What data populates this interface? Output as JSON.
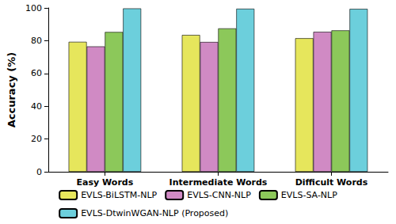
{
  "chart_data": {
    "type": "bar",
    "y_label": "Accuracy (%)",
    "categories": [
      "Easy Words",
      "Intermediate Words",
      "Difficult Words"
    ],
    "series": [
      {
        "name": "EVLS-BiLSTM-NLP",
        "color": "#e6e65c",
        "values": [
          79.3,
          83.5,
          81.5
        ]
      },
      {
        "name": "EVLS-CNN-NLP",
        "color": "#d08ac4",
        "values": [
          76.5,
          79.2,
          85.4
        ]
      },
      {
        "name": "EVLS-SA-NLP",
        "color": "#8cc85a",
        "values": [
          85.3,
          87.5,
          86.3
        ]
      },
      {
        "name": "EVLS-DtwinWGAN-NLP (Proposed)",
        "color": "#6ccfdc",
        "values": [
          99.7,
          99.5,
          99.4
        ]
      }
    ],
    "ylim": [
      0,
      100
    ],
    "yticks": [
      0,
      20,
      40,
      60,
      80,
      100
    ],
    "grid": false,
    "legend": "lower center"
  }
}
